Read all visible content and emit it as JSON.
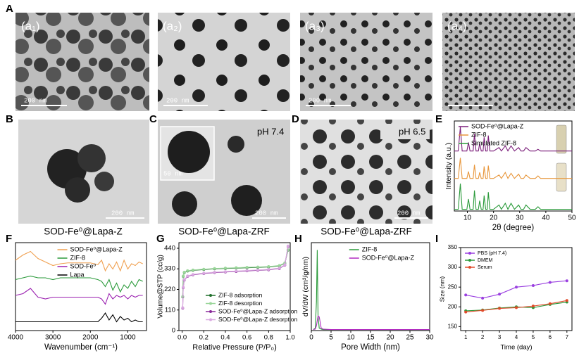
{
  "panels": {
    "letters": [
      "A",
      "B",
      "C",
      "D",
      "E",
      "F",
      "G",
      "H",
      "I"
    ],
    "images": [
      {
        "label": "(a₁)",
        "scale": "200 nm"
      },
      {
        "label": "(a₂)",
        "scale": "200 nm"
      },
      {
        "label": "(a₃)",
        "scale": "200 nm"
      },
      {
        "label": "(a₄)"
      },
      {
        "scale": "200 nm"
      },
      {
        "ph": "pH 7.4",
        "scale": "200 nm",
        "inset_scale": "50 nm"
      },
      {
        "ph": "pH 6.5",
        "scale": "200 nm"
      }
    ],
    "captions": [
      "SOD-Fe⁰@Lapa-Z",
      "SOD-Fe⁰@Lapa-ZRF",
      "SOD-Fe⁰@Lapa-ZRF"
    ]
  },
  "chart_data": [
    {
      "type": "line",
      "xlabel": "2θ (degree)",
      "ylabel": "Intensity (a.u.)",
      "x": [
        5,
        6.5,
        7.3,
        8,
        9.8,
        10.4,
        11,
        12.2,
        12.7,
        13.3,
        14.2,
        14.7,
        15.3,
        16,
        16.4,
        17,
        17.6,
        18,
        18.6,
        20,
        22.1,
        23,
        24.5,
        25.5,
        26.7,
        28,
        29.6,
        30.5,
        31.5,
        32.4,
        34,
        36,
        37,
        38,
        40,
        42,
        44,
        46,
        48,
        50
      ],
      "xlim": [
        5,
        50
      ],
      "xticks": [
        10,
        20,
        30,
        40,
        50
      ],
      "ylim": [
        0,
        105
      ],
      "legend": "upper-left",
      "series": [
        {
          "name": "SOD-Fe⁰@Lapa-Z",
          "color": "#7b1e7a",
          "values": [
            70,
            70,
            98,
            70,
            70,
            80,
            70,
            70,
            90,
            70,
            70,
            79,
            70,
            70,
            86,
            70,
            70,
            88,
            70,
            70,
            74,
            70,
            76,
            70,
            76,
            70,
            74,
            70,
            70,
            74,
            70,
            70,
            72,
            70,
            70,
            70,
            70,
            70,
            70,
            70
          ]
        },
        {
          "name": "ZIF-8",
          "color": "#e8963a",
          "values": [
            38,
            38,
            62,
            38,
            38,
            46,
            38,
            38,
            54,
            38,
            38,
            45,
            38,
            38,
            52,
            38,
            38,
            53,
            38,
            38,
            42,
            38,
            45,
            38,
            44,
            38,
            43,
            38,
            38,
            42,
            38,
            38,
            41,
            38,
            38,
            38,
            38,
            38,
            38,
            38
          ]
        },
        {
          "name": "Simulated ZIF-8",
          "color": "#2a9a3a",
          "values": [
            2,
            2,
            32,
            2,
            2,
            14,
            2,
            2,
            24,
            2,
            2,
            12,
            2,
            2,
            18,
            2,
            2,
            22,
            2,
            2,
            7,
            2,
            9,
            2,
            9,
            2,
            7,
            2,
            2,
            7,
            2,
            2,
            5,
            2,
            2,
            2,
            2,
            2,
            2,
            2
          ]
        }
      ]
    },
    {
      "type": "line",
      "xlabel": "Wavenumber (cm⁻¹)",
      "x": [
        4000,
        3800,
        3600,
        3400,
        3200,
        3000,
        2800,
        2600,
        2400,
        2200,
        2000,
        1800,
        1700,
        1600,
        1500,
        1400,
        1300,
        1200,
        1100,
        1000,
        900,
        800,
        700,
        600
      ],
      "xlim": [
        4000,
        500
      ],
      "xticks": [
        4000,
        3000,
        2000,
        1000
      ],
      "ylim": [
        0,
        100
      ],
      "legend": "upper-center",
      "series": [
        {
          "name": "SOD-Fe⁰@Lapa-Z",
          "color": "#f0a050",
          "values": [
            80,
            86,
            90,
            82,
            78,
            74,
            76,
            77,
            77,
            77,
            77,
            75,
            80,
            68,
            76,
            70,
            78,
            68,
            80,
            70,
            76,
            74,
            78,
            76
          ]
        },
        {
          "name": "ZIF-8",
          "color": "#2a9a3a",
          "values": [
            58,
            60,
            62,
            60,
            60,
            58,
            60,
            60,
            60,
            60,
            60,
            58,
            56,
            50,
            58,
            46,
            54,
            44,
            52,
            48,
            56,
            50,
            58,
            56
          ]
        },
        {
          "name": "SOD-Fe⁰",
          "color": "#9a1fb0",
          "values": [
            40,
            42,
            48,
            38,
            36,
            38,
            38,
            38,
            38,
            38,
            38,
            38,
            36,
            30,
            42,
            36,
            40,
            38,
            40,
            36,
            40,
            38,
            40,
            40
          ]
        },
        {
          "name": "Lapa",
          "color": "#000000",
          "values": [
            10,
            10,
            10,
            10,
            10,
            10,
            10,
            10,
            10,
            10,
            10,
            10,
            14,
            20,
            12,
            18,
            10,
            16,
            12,
            14,
            10,
            12,
            10,
            10
          ]
        }
      ]
    },
    {
      "type": "line",
      "markers": true,
      "xlabel": "Relative Pressure (P/P₀)",
      "ylabel": "Volume@STP (cc/g)",
      "x": [
        0.005,
        0.01,
        0.02,
        0.05,
        0.1,
        0.2,
        0.3,
        0.4,
        0.5,
        0.6,
        0.7,
        0.8,
        0.9,
        0.95,
        0.98
      ],
      "xlim": [
        -0.03,
        1.0
      ],
      "xticks": [
        {
          "value": 0,
          "label": "0.0"
        },
        {
          "value": 0.2,
          "label": "0.2"
        },
        {
          "value": 0.4,
          "label": "0.4"
        },
        {
          "value": 0.6,
          "label": "0.6"
        },
        {
          "value": 0.8,
          "label": "0.8"
        },
        {
          "value": 1,
          "label": "1.0"
        }
      ],
      "ylim": [
        0,
        470
      ],
      "yticks": [
        0,
        110,
        220,
        330,
        440
      ],
      "legend": "lower-right",
      "series": [
        {
          "name": "ZIF-8 adsorption",
          "color": "#1f6f2a",
          "values": [
            180,
            290,
            310,
            318,
            322,
            326,
            330,
            332,
            334,
            336,
            338,
            340,
            346,
            360,
            430
          ]
        },
        {
          "name": "ZIF-8 desorption",
          "color": "#9ad69a",
          "values": [
            182,
            292,
            312,
            320,
            324,
            328,
            332,
            334,
            336,
            338,
            340,
            342,
            348,
            362,
            432
          ]
        },
        {
          "name": "SOD-Fe⁰@Lapa-Z adsorption",
          "color": "#8a2a9a",
          "values": [
            120,
            230,
            270,
            290,
            298,
            305,
            310,
            313,
            316,
            319,
            322,
            325,
            332,
            350,
            450
          ]
        },
        {
          "name": "SOD-Fe⁰@Lapa-Z desorption",
          "color": "#d9a8e0",
          "values": [
            122,
            232,
            272,
            292,
            300,
            307,
            312,
            315,
            318,
            321,
            324,
            327,
            334,
            352,
            452
          ]
        }
      ]
    },
    {
      "type": "line",
      "xlabel": "Pore Width (nm)",
      "ylabel": "dV/dW (cm³/g/nm)",
      "x": [
        0.5,
        1,
        1.3,
        1.5,
        1.7,
        2,
        2.5,
        3,
        5,
        10,
        20,
        30
      ],
      "xlim": [
        0,
        30
      ],
      "xticks": [
        0,
        5,
        10,
        15,
        20,
        25,
        30
      ],
      "ylim": [
        0,
        1.8
      ],
      "legend": "upper-center",
      "series": [
        {
          "name": "ZIF-8",
          "color": "#2a9a3a",
          "values": [
            0.02,
            0.05,
            0.6,
            1.65,
            0.3,
            0.05,
            0.03,
            0.02,
            0.02,
            0.02,
            0.02,
            0.02
          ]
        },
        {
          "name": "SOD-Fe⁰@Lapa-Z",
          "color": "#b02ac0",
          "values": [
            0.02,
            0.03,
            0.1,
            0.2,
            0.3,
            0.28,
            0.05,
            0.03,
            0.02,
            0.02,
            0.02,
            0.02
          ]
        }
      ]
    },
    {
      "type": "line",
      "markers": true,
      "xlabel": "Time (day)",
      "ylabel": "Size (nm)",
      "x": [
        1,
        2,
        3,
        4,
        5,
        6,
        7
      ],
      "xlim": [
        0.7,
        7.3
      ],
      "xticks": [
        1,
        2,
        3,
        4,
        5,
        6,
        7
      ],
      "ylim": [
        140,
        350
      ],
      "yticks": [
        150,
        200,
        250,
        300,
        350
      ],
      "legend": "upper-left",
      "series": [
        {
          "name": "PBS (pH 7.4)",
          "color": "#9a3fe0",
          "values": [
            230,
            222,
            232,
            250,
            254,
            262,
            266
          ]
        },
        {
          "name": "DMEM",
          "color": "#2a9a3a",
          "values": [
            190,
            192,
            197,
            200,
            198,
            206,
            212
          ]
        },
        {
          "name": "Serum",
          "color": "#e04a2a",
          "values": [
            187,
            191,
            196,
            198,
            202,
            208,
            216
          ]
        }
      ]
    }
  ]
}
